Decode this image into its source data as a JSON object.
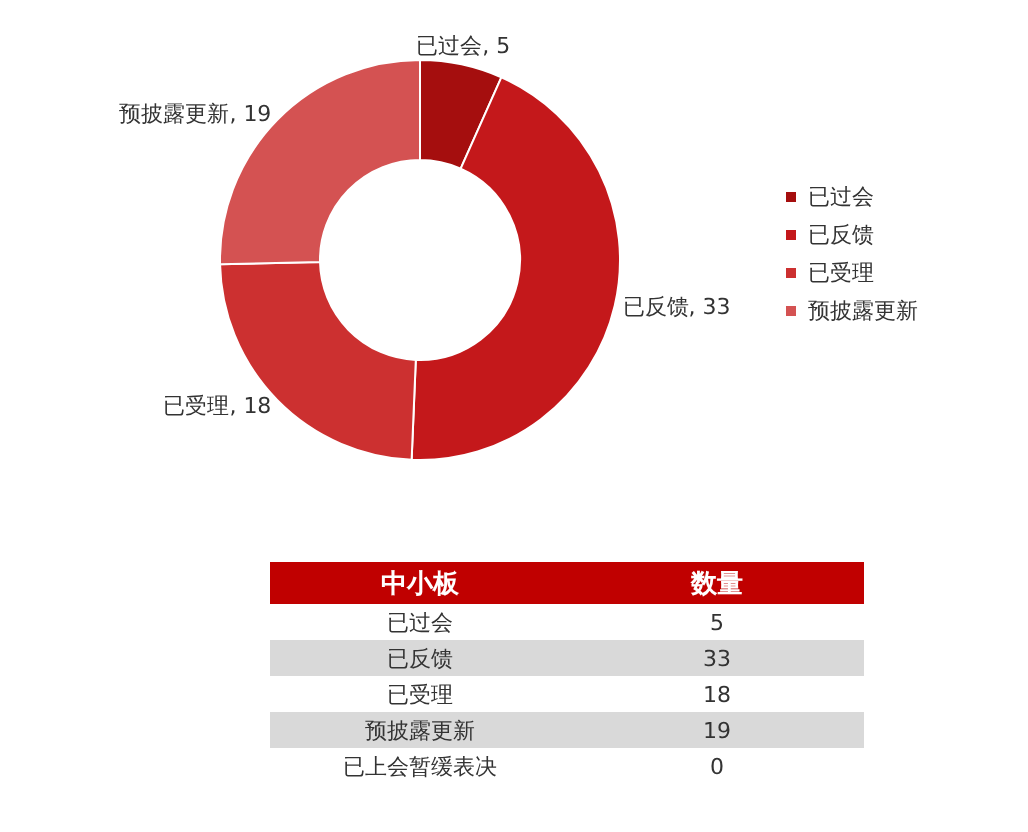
{
  "chart_data": [
    {
      "type": "donut",
      "categories": [
        "已过会",
        "已反馈",
        "已受理",
        "预披露更新"
      ],
      "values": [
        5,
        33,
        18,
        19
      ],
      "value_labels": [
        ", 5",
        ", 33",
        ", 18",
        ", 19"
      ],
      "colors": [
        "#a50e0e",
        "#c4181b",
        "#cc3030",
        "#d45252"
      ],
      "legend": "right"
    },
    {
      "type": "other",
      "categories": [
        "已过会",
        "已反馈",
        "已受理",
        "预披露更新",
        "已上会暂缓表决"
      ],
      "values": [
        5,
        33,
        18,
        19,
        0
      ],
      "data_labels": true,
      "annotations": [
        "中小板",
        "数量"
      ]
    }
  ]
}
